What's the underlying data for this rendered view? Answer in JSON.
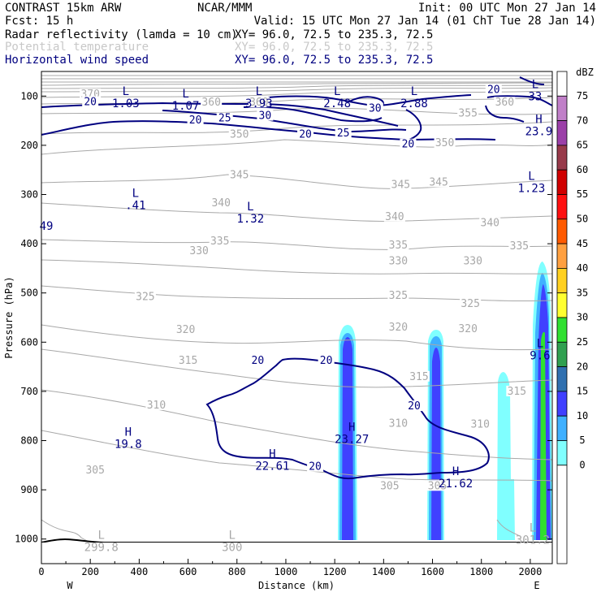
{
  "header": {
    "model": "CONTRAST 15km ARW",
    "org": "NCAR/MMM",
    "init": "Init: 00 UTC Mon 27 Jan 14",
    "fcst": "Fcst:   15 h",
    "valid": "Valid: 15 UTC Mon 27 Jan 14 (01 ChT Tue 28 Jan 14)",
    "fields": [
      {
        "name": "Radar reflectivity (lamda = 10 cm)",
        "xy": "XY=  96.0, 72.5 to 235.3, 72.5",
        "color": "#000000"
      },
      {
        "name": "Potential temperature",
        "xy": "XY=  96.0, 72.5 to 235.3, 72.5",
        "color": "#c8c8c8"
      },
      {
        "name": "Horizontal wind speed",
        "xy": "XY=  96.0, 72.5 to 235.3, 72.5",
        "color": "#000080"
      }
    ]
  },
  "chart_data": {
    "type": "heatmap",
    "xlabel": "Distance (km)",
    "ylabel": "Pressure (hPa)",
    "xlim": [
      0,
      2090
    ],
    "ylim": [
      1050,
      50
    ],
    "x_ticks": [
      0,
      200,
      400,
      600,
      800,
      1000,
      1200,
      1400,
      1600,
      1800,
      2000
    ],
    "y_ticks": [
      100,
      200,
      300,
      400,
      500,
      600,
      700,
      800,
      900,
      1000
    ],
    "x_end_labels": {
      "left": "W",
      "right": "E"
    },
    "colorbar": {
      "unit": "dBZ",
      "labels": [
        "75",
        "70",
        "65",
        "60",
        "55",
        "50",
        "45",
        "40",
        "35",
        "30",
        "25",
        "20",
        "15",
        "10",
        "5",
        "0"
      ],
      "colors": [
        "#ffffff",
        "#c07fc8",
        "#9b3fa8",
        "#983a4a",
        "#d00000",
        "#ff1010",
        "#ff5a00",
        "#ffa040",
        "#ffd020",
        "#ffff30",
        "#30e030",
        "#30a050",
        "#3070b0",
        "#4040ff",
        "#3fb0ff",
        "#80ffff"
      ]
    },
    "isentropes": {
      "color": "#a8a8a8",
      "levels": [
        {
          "theta": "305",
          "x": 220,
          "p": 865
        },
        {
          "theta": "305",
          "x": 1620,
          "p": 897
        },
        {
          "theta": "305",
          "x": 1425,
          "p": 897
        },
        {
          "theta": "310",
          "x": 470,
          "p": 733
        },
        {
          "theta": "310",
          "x": 1460,
          "p": 770
        },
        {
          "theta": "310",
          "x": 1795,
          "p": 772
        },
        {
          "theta": "315",
          "x": 600,
          "p": 642
        },
        {
          "theta": "315",
          "x": 1545,
          "p": 675
        },
        {
          "theta": "315",
          "x": 1945,
          "p": 705
        },
        {
          "theta": "320",
          "x": 590,
          "p": 580
        },
        {
          "theta": "320",
          "x": 1460,
          "p": 575
        },
        {
          "theta": "320",
          "x": 1745,
          "p": 578
        },
        {
          "theta": "325",
          "x": 425,
          "p": 513
        },
        {
          "theta": "325",
          "x": 1460,
          "p": 510
        },
        {
          "theta": "325",
          "x": 1755,
          "p": 527
        },
        {
          "theta": "330",
          "x": 645,
          "p": 420
        },
        {
          "theta": "330",
          "x": 1460,
          "p": 440
        },
        {
          "theta": "330",
          "x": 1765,
          "p": 440
        },
        {
          "theta": "335",
          "x": 730,
          "p": 400
        },
        {
          "theta": "335",
          "x": 1460,
          "p": 408
        },
        {
          "theta": "335",
          "x": 1955,
          "p": 410
        },
        {
          "theta": "340",
          "x": 735,
          "p": 322
        },
        {
          "theta": "340",
          "x": 1445,
          "p": 350
        },
        {
          "theta": "340",
          "x": 1835,
          "p": 363
        },
        {
          "theta": "345",
          "x": 810,
          "p": 265
        },
        {
          "theta": "345",
          "x": 1470,
          "p": 285
        },
        {
          "theta": "345",
          "x": 1625,
          "p": 280
        },
        {
          "theta": "350",
          "x": 810,
          "p": 183
        },
        {
          "theta": "350",
          "x": 1650,
          "p": 200
        },
        {
          "theta": "355",
          "x": 1745,
          "p": 140
        },
        {
          "theta": "360",
          "x": 1895,
          "p": 118
        },
        {
          "theta": "360",
          "x": 890,
          "p": 118
        },
        {
          "theta": "360",
          "x": 695,
          "p": 118
        },
        {
          "theta": "370",
          "x": 200,
          "p": 101
        }
      ]
    },
    "wind_speed": {
      "color": "#000080",
      "contour_labels": [
        {
          "value": "20",
          "x": 200,
          "p": 117
        },
        {
          "value": "20",
          "x": 630,
          "p": 154
        },
        {
          "value": "25",
          "x": 750,
          "p": 150
        },
        {
          "value": "30",
          "x": 915,
          "p": 145
        },
        {
          "value": "20",
          "x": 1080,
          "p": 183
        },
        {
          "value": "25",
          "x": 1235,
          "p": 180
        },
        {
          "value": "20",
          "x": 1500,
          "p": 203
        },
        {
          "value": "30",
          "x": 1365,
          "p": 130
        },
        {
          "value": "20",
          "x": 1850,
          "p": 92
        },
        {
          "value": "20",
          "x": 885,
          "p": 642
        },
        {
          "value": "20",
          "x": 1165,
          "p": 642
        },
        {
          "value": "20",
          "x": 1525,
          "p": 735
        },
        {
          "value": "20",
          "x": 1120,
          "p": 858
        }
      ]
    },
    "extrema": [
      {
        "letter": "L",
        "value": "1.03",
        "x": 345,
        "p": 98,
        "field": "wind"
      },
      {
        "letter": "L",
        "value": "1.07",
        "x": 590,
        "p": 103,
        "field": "wind"
      },
      {
        "letter": "L",
        "value": "3.93",
        "x": 890,
        "p": 98,
        "field": "wind"
      },
      {
        "letter": "L",
        "value": "2.48",
        "x": 1210,
        "p": 98,
        "field": "wind"
      },
      {
        "letter": "L",
        "value": "2.88",
        "x": 1525,
        "p": 98,
        "field": "wind"
      },
      {
        "letter": "L",
        "value": "33",
        "x": 2020,
        "p": 84,
        "field": "wind"
      },
      {
        "letter": "H",
        "value": "23.9",
        "x": 2035,
        "p": 155,
        "field": "wind"
      },
      {
        "letter": "L",
        "value": "1.23",
        "x": 2005,
        "p": 270,
        "field": "wind"
      },
      {
        "letter": "L",
        "value": ".41",
        "x": 385,
        "p": 305,
        "field": "wind"
      },
      {
        "letter": "L",
        "value": "1.32",
        "x": 855,
        "p": 332,
        "field": "wind"
      },
      {
        "letter": "",
        "value": "49",
        "x": 20,
        "p": 347,
        "field": "wind"
      },
      {
        "letter": "L",
        "value": "9.6",
        "x": 2040,
        "p": 610,
        "field": "wind"
      },
      {
        "letter": "H",
        "value": "19.8",
        "x": 355,
        "p": 790,
        "field": "wind"
      },
      {
        "letter": "H",
        "value": "22.61",
        "x": 945,
        "p": 835,
        "field": "wind"
      },
      {
        "letter": "H",
        "value": "23.27",
        "x": 1270,
        "p": 780,
        "field": "wind"
      },
      {
        "letter": "H",
        "value": "21.62",
        "x": 1695,
        "p": 870,
        "field": "wind"
      },
      {
        "letter": "L",
        "value": "299.8",
        "x": 245,
        "p": 1000,
        "field": "theta"
      },
      {
        "letter": "L",
        "value": "300",
        "x": 780,
        "p": 1000,
        "field": "theta"
      },
      {
        "letter": "L",
        "value": "301.2",
        "x": 2010,
        "p": 985,
        "field": "theta"
      }
    ]
  }
}
